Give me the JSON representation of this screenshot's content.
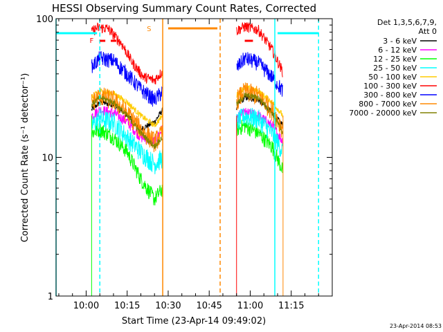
{
  "chart_data": {
    "type": "line",
    "title": "HESSI Observing Summary Count Rates, Corrected",
    "xlabel": "Start Time (23-Apr-14 09:49:02)",
    "ylabel": "Corrected Count Rate (s⁻¹ detector⁻¹)",
    "xlim": [
      "09:49",
      "11:30"
    ],
    "ylim": [
      1,
      100
    ],
    "y_scale": "log",
    "x_ticks": [
      "10:00",
      "10:15",
      "10:30",
      "10:45",
      "11:00",
      "11:15"
    ],
    "y_ticks": [
      "1",
      "10",
      "100"
    ],
    "legend": {
      "placement": "top-right",
      "header": [
        "Det 1,3,5,6,7,9,",
        "Att 0"
      ]
    },
    "time_base": "23-Apr-14 09:49:02",
    "data_gaps": [
      [
        "10:28",
        "10:55"
      ],
      [
        "11:12",
        "11:30"
      ]
    ],
    "series": [
      {
        "name": "3 - 6 keV",
        "color": "#000000",
        "segments": [
          {
            "x": [
              "10:02",
              "10:05",
              "10:10",
              "10:15",
              "10:20",
              "10:25",
              "10:28"
            ],
            "y": [
              22,
              25,
              24,
              20,
              16,
              18,
              22
            ]
          },
          {
            "x": [
              "10:55",
              "10:58",
              "11:03",
              "11:08",
              "11:12"
            ],
            "y": [
              23,
              27,
              26,
              21,
              17
            ]
          }
        ]
      },
      {
        "name": "6 - 12 keV",
        "color": "#ff00ff",
        "segments": [
          {
            "x": [
              "10:02",
              "10:05",
              "10:10",
              "10:15",
              "10:20",
              "10:25",
              "10:28"
            ],
            "y": [
              20,
              22,
              21,
              18,
              14,
              13,
              16
            ]
          },
          {
            "x": [
              "10:55",
              "10:58",
              "11:03",
              "11:08",
              "11:12"
            ],
            "y": [
              19,
              21,
              20,
              17,
              13
            ]
          }
        ]
      },
      {
        "name": "12 - 25 keV",
        "color": "#00ff00",
        "segments": [
          {
            "x": [
              "10:02",
              "10:05",
              "10:10",
              "10:15",
              "10:20",
              "10:25",
              "10:28"
            ],
            "y": [
              15,
              16,
              14,
              11,
              7,
              5,
              6
            ]
          },
          {
            "x": [
              "10:55",
              "10:58",
              "11:03",
              "11:08",
              "11:12"
            ],
            "y": [
              16,
              17,
              15,
              12,
              8
            ]
          }
        ]
      },
      {
        "name": "25 - 50 keV",
        "color": "#00ffff",
        "segments": [
          {
            "x": [
              "10:02",
              "10:05",
              "10:10",
              "10:15",
              "10:20",
              "10:25",
              "10:28"
            ],
            "y": [
              17,
              19,
              18,
              14,
              11,
              9,
              10
            ]
          },
          {
            "x": [
              "10:55",
              "10:58",
              "11:03",
              "11:08",
              "11:12"
            ],
            "y": [
              18,
              20,
              19,
              15,
              11
            ]
          }
        ]
      },
      {
        "name": "50 - 100 keV",
        "color": "#ffcc00",
        "segments": [
          {
            "x": [
              "10:02",
              "10:05",
              "10:10",
              "10:15",
              "10:20",
              "10:25",
              "10:28"
            ],
            "y": [
              27,
              30,
              29,
              25,
              20,
              17,
              20
            ]
          },
          {
            "x": [
              "10:55",
              "10:58",
              "11:03",
              "11:08",
              "11:12"
            ],
            "y": [
              28,
              32,
              30,
              25,
              20
            ]
          }
        ]
      },
      {
        "name": "100 - 300 keV",
        "color": "#ff0000",
        "segments": [
          {
            "x": [
              "10:02",
              "10:04",
              "10:08",
              "10:13",
              "10:17",
              "10:21",
              "10:25",
              "10:28"
            ],
            "y": [
              80,
              86,
              85,
              66,
              48,
              38,
              36,
              42
            ]
          },
          {
            "x": [
              "10:55",
              "10:58",
              "11:03",
              "11:08",
              "11:12"
            ],
            "y": [
              82,
              88,
              83,
              60,
              41
            ]
          }
        ]
      },
      {
        "name": "300 - 800 keV",
        "color": "#0000ff",
        "segments": [
          {
            "x": [
              "10:02",
              "10:05",
              "10:10",
              "10:15",
              "10:20",
              "10:25",
              "10:28"
            ],
            "y": [
              45,
              52,
              50,
              40,
              31,
              26,
              30
            ]
          },
          {
            "x": [
              "10:55",
              "10:58",
              "11:03",
              "11:08",
              "11:12"
            ],
            "y": [
              44,
              52,
              48,
              38,
              30
            ]
          }
        ]
      },
      {
        "name": "800 - 7000 keV",
        "color": "#ff8800",
        "segments": [
          {
            "x": [
              "10:02",
              "10:05",
              "10:10",
              "10:15",
              "10:20",
              "10:25",
              "10:28"
            ],
            "y": [
              25,
              28,
              26,
              21,
              16,
              13,
              15
            ]
          },
          {
            "x": [
              "10:55",
              "10:58",
              "11:03",
              "11:08",
              "11:12"
            ],
            "y": [
              26,
              30,
              28,
              22,
              16
            ]
          }
        ]
      },
      {
        "name": "7000 - 20000 keV",
        "color": "#808000",
        "segments": [
          {
            "x": [
              "10:02",
              "10:05",
              "10:10",
              "10:15",
              "10:20",
              "10:25",
              "10:28"
            ],
            "y": [
              24,
              27,
              25,
              20,
              15,
              12,
              14
            ]
          },
          {
            "x": [
              "10:55",
              "10:58",
              "11:03",
              "11:08",
              "11:12"
            ],
            "y": [
              24,
              28,
              27,
              21,
              15
            ]
          }
        ]
      }
    ],
    "markers": {
      "cyan": {
        "color": "#00ffff",
        "solid_lines": [
          "09:49",
          "11:09"
        ],
        "dashed_lines": [
          "10:05",
          "11:25"
        ],
        "bars": [
          [
            "09:49",
            "10:04"
          ],
          [
            "11:10",
            "11:25"
          ]
        ]
      },
      "orange": {
        "color": "#ff8800",
        "label": "S",
        "solid_lines": [
          "10:28"
        ],
        "dashed_lines": [
          "10:49"
        ],
        "bar": [
          "10:30",
          "10:48"
        ]
      },
      "red": {
        "color": "#ff0000",
        "label": "F",
        "segments": [
          [
            "10:05",
            "10:07"
          ],
          [
            "10:09",
            "10:11"
          ],
          [
            "10:58",
            "11:01"
          ]
        ]
      }
    }
  },
  "timestamp": "23-Apr-2014 08:53"
}
